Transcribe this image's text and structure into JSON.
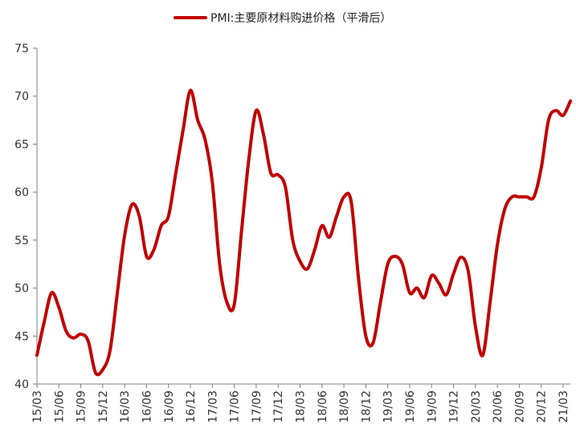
{
  "chart_data": {
    "type": "line",
    "title": "",
    "legend": {
      "position": "top-center",
      "entries": [
        "PMI:主要原材料购进价格（平滑后）"
      ]
    },
    "xlabel": "",
    "ylabel": "",
    "ylim": [
      40,
      75
    ],
    "yticks": [
      40,
      45,
      50,
      55,
      60,
      65,
      70,
      75
    ],
    "grid": false,
    "x_tick_labels": [
      "15/03",
      "15/06",
      "15/09",
      "15/12",
      "16/03",
      "16/06",
      "16/09",
      "16/12",
      "17/03",
      "17/06",
      "17/09",
      "17/12",
      "18/03",
      "18/06",
      "18/09",
      "18/12",
      "19/03",
      "19/06",
      "19/09",
      "19/12",
      "20/03",
      "20/06",
      "20/09",
      "20/12",
      "21/03"
    ],
    "series": [
      {
        "name": "PMI:主要原材料购进价格（平滑后）",
        "color": "#C00000",
        "x": [
          "15/03",
          "15/04",
          "15/05",
          "15/06",
          "15/07",
          "15/08",
          "15/09",
          "15/10",
          "15/11",
          "15/12",
          "16/01",
          "16/02",
          "16/03",
          "16/04",
          "16/05",
          "16/06",
          "16/07",
          "16/08",
          "16/09",
          "16/10",
          "16/11",
          "16/12",
          "17/01",
          "17/02",
          "17/03",
          "17/04",
          "17/05",
          "17/06",
          "17/07",
          "17/08",
          "17/09",
          "17/10",
          "17/11",
          "17/12",
          "18/01",
          "18/02",
          "18/03",
          "18/04",
          "18/05",
          "18/06",
          "18/07",
          "18/08",
          "18/09",
          "18/10",
          "18/11",
          "18/12",
          "19/01",
          "19/02",
          "19/03",
          "19/04",
          "19/05",
          "19/06",
          "19/07",
          "19/08",
          "19/09",
          "19/10",
          "19/11",
          "19/12",
          "20/01",
          "20/02",
          "20/03",
          "20/04",
          "20/05",
          "20/06",
          "20/07",
          "20/08",
          "20/09",
          "20/10",
          "20/11",
          "20/12",
          "21/01",
          "21/02",
          "21/03",
          "21/04"
        ],
        "values": [
          43.0,
          46.5,
          49.5,
          48.0,
          45.5,
          44.8,
          45.2,
          44.5,
          41.2,
          41.5,
          43.5,
          49.5,
          55.5,
          58.7,
          57.5,
          53.3,
          54.0,
          56.5,
          57.5,
          62.0,
          66.5,
          70.6,
          67.5,
          65.5,
          61.0,
          52.5,
          48.5,
          48.3,
          56.0,
          63.5,
          68.5,
          66.0,
          62.0,
          61.8,
          60.5,
          55.0,
          52.8,
          52.0,
          54.0,
          56.5,
          55.3,
          57.5,
          59.5,
          59.0,
          51.0,
          45.0,
          44.3,
          48.5,
          52.5,
          53.3,
          52.5,
          49.5,
          50.0,
          49.0,
          51.3,
          50.5,
          49.3,
          51.5,
          53.2,
          51.8,
          46.0,
          43.0,
          48.5,
          54.5,
          58.2,
          59.5,
          59.5,
          59.5,
          59.5,
          62.5,
          67.5,
          68.5,
          68.0,
          69.5
        ]
      }
    ]
  }
}
